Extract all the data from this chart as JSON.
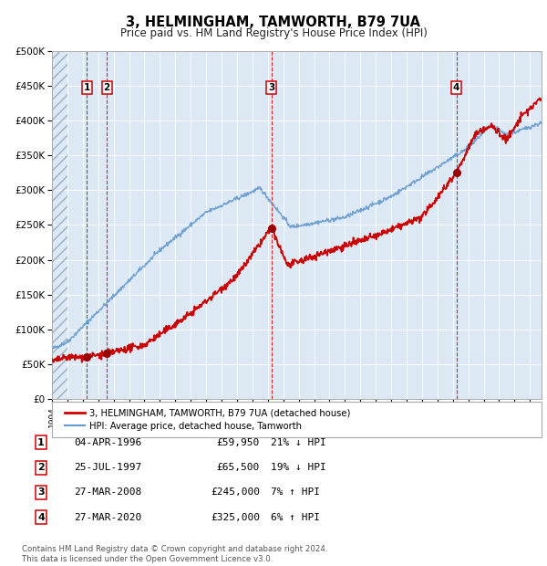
{
  "title": "3, HELMINGHAM, TAMWORTH, B79 7UA",
  "subtitle": "Price paid vs. HM Land Registry's House Price Index (HPI)",
  "plot_bg_color": "#dce9f5",
  "red_line_color": "#cc0000",
  "blue_line_color": "#6699cc",
  "red_dot_color": "#990000",
  "ylim": [
    0,
    500000
  ],
  "ytick_labels": [
    "£0",
    "£50K",
    "£100K",
    "£150K",
    "£200K",
    "£250K",
    "£300K",
    "£350K",
    "£400K",
    "£450K",
    "£500K"
  ],
  "ytick_values": [
    0,
    50000,
    100000,
    150000,
    200000,
    250000,
    300000,
    350000,
    400000,
    450000,
    500000
  ],
  "xlim_start": 1994.0,
  "xlim_end": 2025.75,
  "transactions": [
    {
      "date_num": 1996.26,
      "price": 59950,
      "label": "1"
    },
    {
      "date_num": 1997.56,
      "price": 65500,
      "label": "2"
    },
    {
      "date_num": 2008.23,
      "price": 245000,
      "label": "3"
    },
    {
      "date_num": 2020.23,
      "price": 325000,
      "label": "4"
    }
  ],
  "legend_label_red": "3, HELMINGHAM, TAMWORTH, B79 7UA (detached house)",
  "legend_label_blue": "HPI: Average price, detached house, Tamworth",
  "footer_text": "Contains HM Land Registry data © Crown copyright and database right 2024.\nThis data is licensed under the Open Government Licence v3.0.",
  "table_rows": [
    [
      "1",
      "04-APR-1996",
      "£59,950",
      "21% ↓ HPI"
    ],
    [
      "2",
      "25-JUL-1997",
      "£65,500",
      "19% ↓ HPI"
    ],
    [
      "3",
      "27-MAR-2008",
      "£245,000",
      "7% ↑ HPI"
    ],
    [
      "4",
      "27-MAR-2020",
      "£325,000",
      "6% ↑ HPI"
    ]
  ]
}
